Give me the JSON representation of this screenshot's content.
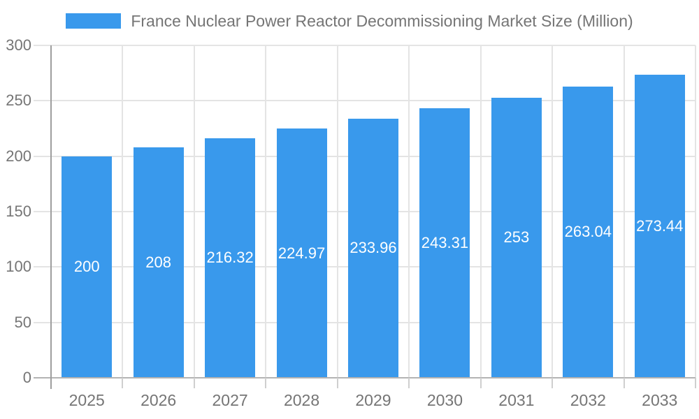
{
  "legend": {
    "position": "top",
    "swatch_color": "#3999EC"
  },
  "chart_data": {
    "type": "bar",
    "title": "France Nuclear Power Reactor Decommissioning Market Size (Million)",
    "categories": [
      "2025",
      "2026",
      "2027",
      "2028",
      "2029",
      "2030",
      "2031",
      "2032",
      "2033"
    ],
    "values": [
      200,
      208,
      216.32,
      224.97,
      233.96,
      243.31,
      253,
      263.04,
      273.44
    ],
    "value_labels": [
      "200",
      "208",
      "216.32",
      "224.97",
      "233.96",
      "243.31",
      "253",
      "263.04",
      "273.44"
    ],
    "xlabel": "",
    "ylabel": "",
    "ylim": [
      0,
      300
    ],
    "yticks": [
      0,
      50,
      100,
      150,
      200,
      250,
      300
    ],
    "grid": true,
    "legend_position": "top",
    "colors": {
      "bar": "#3999EC",
      "bar_value_text": "#ffffff",
      "axis_text": "#757575",
      "title_text": "#757575",
      "gridline": "#e4e4e4",
      "x_axis_line": "#b3b3b3",
      "y_axis_line": "#9e9e9e",
      "tick_mark": "#cfcfcf"
    }
  }
}
